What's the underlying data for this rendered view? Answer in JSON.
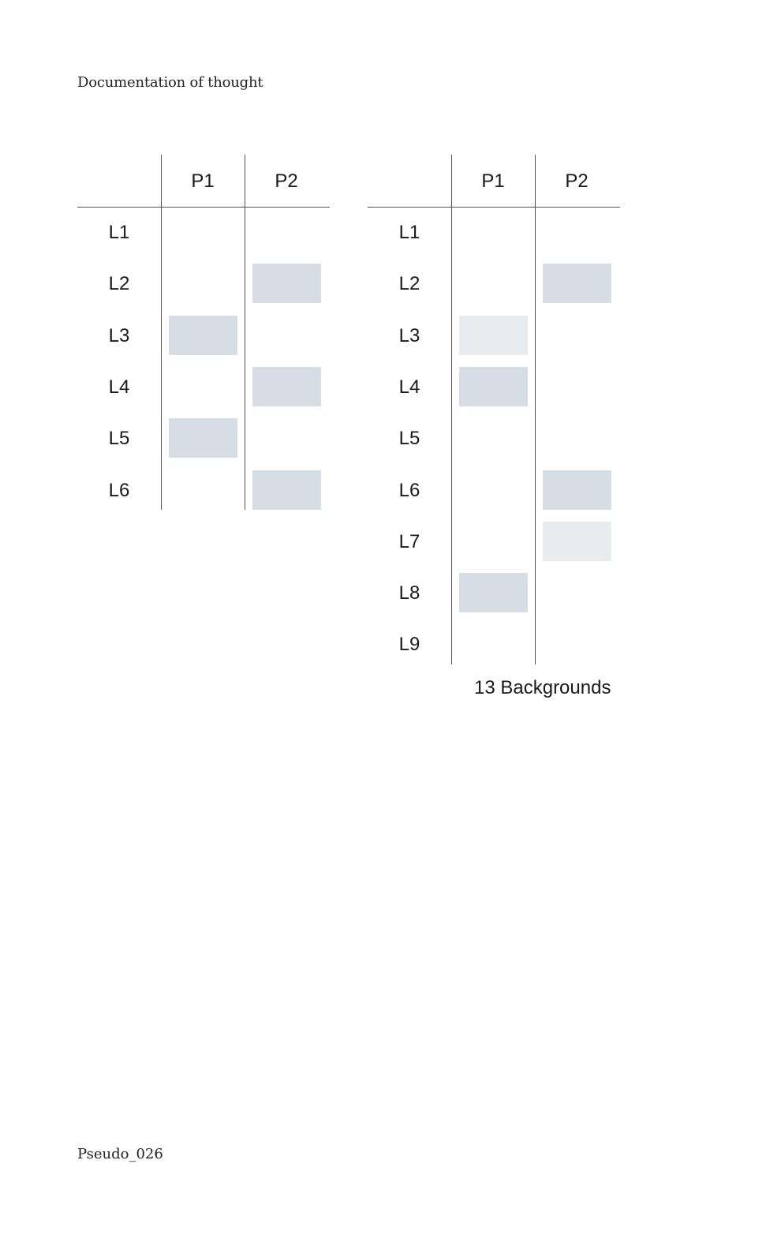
{
  "page": {
    "running_head": "Documentation of thought",
    "folio": "Pseudo_026"
  },
  "colors": {
    "fill": "#d6dde4",
    "fill_light": "#e8ecef",
    "rule": "#555555"
  },
  "tables": [
    {
      "columns": [
        "P1",
        "P2"
      ],
      "rows": [
        "L1",
        "L2",
        "L3",
        "L4",
        "L5",
        "L6"
      ],
      "cells": [
        [
          "",
          ""
        ],
        [
          "",
          "fill"
        ],
        [
          "fill",
          ""
        ],
        [
          "",
          "fill"
        ],
        [
          "fill",
          ""
        ],
        [
          "",
          "fill"
        ]
      ]
    },
    {
      "columns": [
        "P1",
        "P2"
      ],
      "rows": [
        "L1",
        "L2",
        "L3",
        "L4",
        "L5",
        "L6",
        "L7",
        "L8",
        "L9"
      ],
      "cells": [
        [
          "",
          ""
        ],
        [
          "",
          "fill"
        ],
        [
          "fill_light",
          ""
        ],
        [
          "fill",
          ""
        ],
        [
          "",
          ""
        ],
        [
          "",
          "fill"
        ],
        [
          "",
          "fill_light"
        ],
        [
          "fill",
          ""
        ],
        [
          "",
          ""
        ]
      ],
      "caption": "13 Backgrounds"
    }
  ]
}
